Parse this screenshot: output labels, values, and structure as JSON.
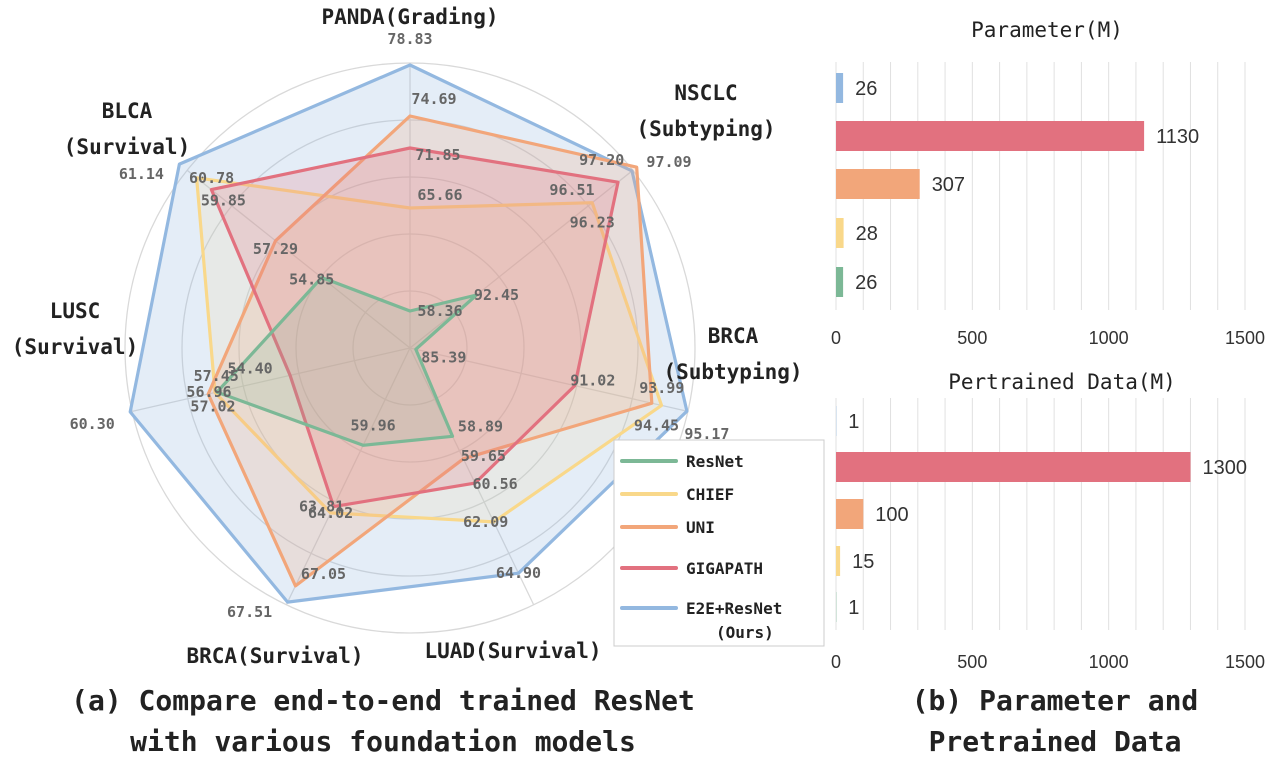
{
  "chart_data": [
    {
      "type": "radar",
      "axes": [
        {
          "title": [
            "PANDA(Grading)"
          ],
          "values": {
            "ResNet": "58.36",
            "CHIEF": "65.66",
            "UNI": "74.69",
            "GIGAPATH": "71.85",
            "E2E+ResNet (Ours)": "78.83"
          }
        },
        {
          "title": [
            "NSCLC",
            "(Subtyping)"
          ],
          "values": {
            "ResNet": "92.45",
            "CHIEF": "96.23",
            "UNI": "97.20",
            "GIGAPATH": "96.51",
            "E2E+ResNet (Ours)": "97.09"
          }
        },
        {
          "title": [
            "BRCA",
            "(Subtyping)"
          ],
          "values": {
            "ResNet": "85.39",
            "CHIEF": "94.45",
            "UNI": "93.99",
            "GIGAPATH": "91.02",
            "E2E+ResNet (Ours)": "95.17"
          }
        },
        {
          "title": [
            "LUAD(Survival)"
          ],
          "values": {
            "ResNet": "58.89",
            "CHIEF": "62.09",
            "UNI": "59.65",
            "GIGAPATH": "60.56",
            "E2E+ResNet (Ours)": "64.90"
          }
        },
        {
          "title": [
            "BRCA(Survival)"
          ],
          "values": {
            "ResNet": "59.96",
            "CHIEF": "64.02",
            "UNI": "67.05",
            "GIGAPATH": "63.81",
            "E2E+ResNet (Ours)": "67.51"
          }
        },
        {
          "title": [
            "LUSC",
            "(Survival)"
          ],
          "values": {
            "ResNet": "56.96",
            "CHIEF": "57.02",
            "UNI": "57.45",
            "GIGAPATH": "54.40",
            "E2E+ResNet (Ours)": "60.30"
          }
        },
        {
          "title": [
            "BLCA",
            "(Survival)"
          ],
          "values": {
            "ResNet": "54.85",
            "CHIEF": "60.78",
            "UNI": "57.29",
            "GIGAPATH": "59.85",
            "E2E+ResNet (Ours)": "61.14"
          }
        }
      ],
      "series": [
        {
          "name": "ResNet",
          "legend": [
            "ResNet"
          ],
          "color": "#7cb896",
          "fill": "rgba(124,184,150,0.18)"
        },
        {
          "name": "CHIEF",
          "legend": [
            "CHIEF"
          ],
          "color": "#f9d88a",
          "fill": "rgba(249,216,138,0.15)"
        },
        {
          "name": "UNI",
          "legend": [
            "UNI"
          ],
          "color": "#f2a67a",
          "fill": "rgba(242,166,122,0.22)"
        },
        {
          "name": "GIGAPATH",
          "legend": [
            "GIGAPATH"
          ],
          "color": "#e2717f",
          "fill": "rgba(226,113,127,0.22)"
        },
        {
          "name": "E2E+ResNet (Ours)",
          "legend": [
            "E2E+ResNet",
            "(Ours)"
          ],
          "color": "#93b8e0",
          "fill": "rgba(147,184,224,0.25)"
        }
      ],
      "ring_count": 5,
      "grid": true,
      "legend_position": "bottom-right"
    },
    {
      "type": "bar",
      "orientation": "horizontal",
      "title": "Parameter(M)",
      "categories": [
        "E2E+ResNet (Ours)",
        "GIGAPATH",
        "UNI",
        "CHIEF",
        "ResNet"
      ],
      "values": [
        26,
        1130,
        307,
        28,
        26
      ],
      "colors": [
        "#93b8e0",
        "#e2717f",
        "#f2a67a",
        "#f9d88a",
        "#7cb896"
      ],
      "xlim": [
        0,
        1500
      ],
      "xticks": [
        0,
        500,
        1000,
        1500
      ],
      "grid": true
    },
    {
      "type": "bar",
      "orientation": "horizontal",
      "title": "Pertrained Data(M)",
      "categories": [
        "E2E+ResNet (Ours)",
        "GIGAPATH",
        "UNI",
        "CHIEF",
        "ResNet"
      ],
      "values": [
        1,
        1300,
        100,
        15,
        1
      ],
      "colors": [
        "#93b8e0",
        "#e2717f",
        "#f2a67a",
        "#f9d88a",
        "#7cb896"
      ],
      "xlim": [
        0,
        1500
      ],
      "xticks": [
        0,
        500,
        1000,
        1500
      ],
      "grid": true
    }
  ],
  "captions": {
    "a_line1": "(a) Compare end-to-end trained ResNet",
    "a_line2": "with various foundation models",
    "b_line1": "(b) Parameter and",
    "b_line2": "Pretrained Data"
  }
}
